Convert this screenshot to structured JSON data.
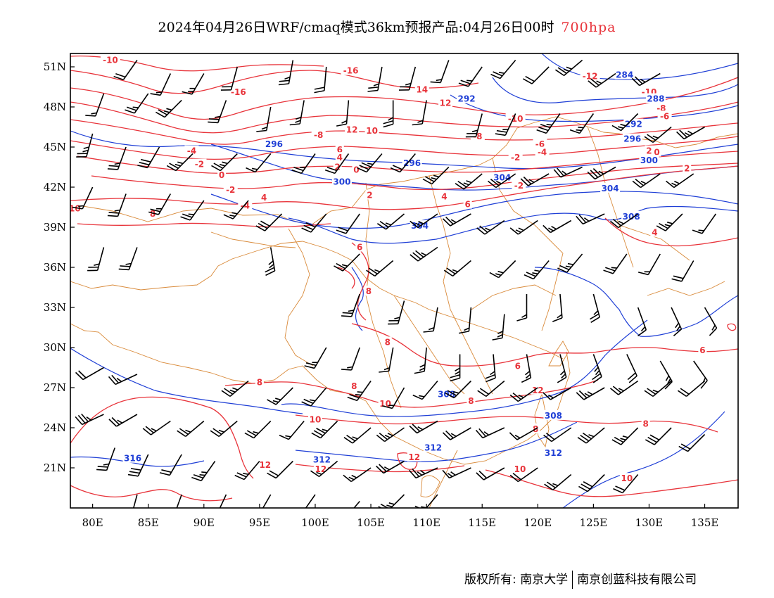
{
  "title": {
    "main": "2024年04月26日WRF/cmaq模式36km预报产品:04月26日00时",
    "level": "700hpa",
    "level_color": "#e8333a"
  },
  "map": {
    "lon_range": [
      78,
      138
    ],
    "lat_range": [
      18,
      52
    ],
    "lon_ticks": [
      {
        "value": 80,
        "label": "80E"
      },
      {
        "value": 85,
        "label": "85E"
      },
      {
        "value": 90,
        "label": "90E"
      },
      {
        "value": 95,
        "label": "95E"
      },
      {
        "value": 100,
        "label": "100E"
      },
      {
        "value": 105,
        "label": "105E"
      },
      {
        "value": 110,
        "label": "110E"
      },
      {
        "value": 115,
        "label": "115E"
      },
      {
        "value": 120,
        "label": "120E"
      },
      {
        "value": 125,
        "label": "125E"
      },
      {
        "value": 130,
        "label": "130E"
      },
      {
        "value": 135,
        "label": "135E"
      }
    ],
    "lat_ticks": [
      {
        "value": 21,
        "label": "21N"
      },
      {
        "value": 24,
        "label": "24N"
      },
      {
        "value": 27,
        "label": "27N"
      },
      {
        "value": 30,
        "label": "30N"
      },
      {
        "value": 33,
        "label": "33N"
      },
      {
        "value": 36,
        "label": "36N"
      },
      {
        "value": 39,
        "label": "39N"
      },
      {
        "value": 42,
        "label": "42N"
      },
      {
        "value": 45,
        "label": "45N"
      },
      {
        "value": 48,
        "label": "48N"
      },
      {
        "value": 51,
        "label": "51N"
      }
    ],
    "colors": {
      "temperature": "#e8333a",
      "height": "#1f3fd6",
      "boundary": "#d98a3a",
      "wind": "#000000"
    },
    "temperature_labels": [
      {
        "text": "-10",
        "lon": 81.6,
        "lat": 51.5
      },
      {
        "text": "-16",
        "lon": 103.2,
        "lat": 50.7
      },
      {
        "text": "-16",
        "lon": 93.1,
        "lat": 49.1
      },
      {
        "text": "14",
        "lon": 109.6,
        "lat": 49.3
      },
      {
        "text": "12",
        "lon": 111.7,
        "lat": 48.3
      },
      {
        "text": "-12",
        "lon": 124.7,
        "lat": 50.3
      },
      {
        "text": "-10",
        "lon": 130.0,
        "lat": 49.1
      },
      {
        "text": "-8",
        "lon": 131.1,
        "lat": 47.9
      },
      {
        "text": "-6",
        "lon": 131.4,
        "lat": 47.3
      },
      {
        "text": "-8",
        "lon": 100.3,
        "lat": 45.9
      },
      {
        "text": "12",
        "lon": 103.3,
        "lat": 46.3
      },
      {
        "text": "10",
        "lon": 105.1,
        "lat": 46.2
      },
      {
        "text": "-8",
        "lon": 114.6,
        "lat": 45.8
      },
      {
        "text": "-10",
        "lon": 118.0,
        "lat": 47.1
      },
      {
        "text": "-6",
        "lon": 120.2,
        "lat": 45.2
      },
      {
        "text": "-4",
        "lon": 120.4,
        "lat": 44.6
      },
      {
        "text": "-2",
        "lon": 118.0,
        "lat": 44.2
      },
      {
        "text": "6",
        "lon": 102.2,
        "lat": 44.8
      },
      {
        "text": "4",
        "lon": 102.2,
        "lat": 44.2
      },
      {
        "text": "2",
        "lon": 102.0,
        "lat": 43.5
      },
      {
        "text": "0",
        "lon": 103.7,
        "lat": 43.3
      },
      {
        "text": "-4",
        "lon": 88.9,
        "lat": 44.7
      },
      {
        "text": "-2",
        "lon": 89.6,
        "lat": 43.7
      },
      {
        "text": "0",
        "lon": 91.6,
        "lat": 42.9
      },
      {
        "text": "-2",
        "lon": 92.4,
        "lat": 41.8
      },
      {
        "text": "4",
        "lon": 95.4,
        "lat": 41.2
      },
      {
        "text": "-4",
        "lon": 93.7,
        "lat": 40.6
      },
      {
        "text": "8",
        "lon": 85.4,
        "lat": 40.0
      },
      {
        "text": "10",
        "lon": 78.4,
        "lat": 40.4
      },
      {
        "text": "2",
        "lon": 104.9,
        "lat": 41.4
      },
      {
        "text": "4",
        "lon": 111.6,
        "lat": 41.3
      },
      {
        "text": "6",
        "lon": 113.7,
        "lat": 40.7
      },
      {
        "text": "-2",
        "lon": 118.3,
        "lat": 42.1
      },
      {
        "text": "2",
        "lon": 130.0,
        "lat": 44.7
      },
      {
        "text": "0",
        "lon": 130.7,
        "lat": 44.6
      },
      {
        "text": "2",
        "lon": 133.4,
        "lat": 43.4
      },
      {
        "text": "4",
        "lon": 130.5,
        "lat": 38.6
      },
      {
        "text": "6",
        "lon": 104.0,
        "lat": 37.5
      },
      {
        "text": "8",
        "lon": 104.8,
        "lat": 34.2
      },
      {
        "text": "8",
        "lon": 106.5,
        "lat": 30.4
      },
      {
        "text": "8",
        "lon": 95.0,
        "lat": 27.4
      },
      {
        "text": "8",
        "lon": 103.5,
        "lat": 27.1
      },
      {
        "text": "6",
        "lon": 118.2,
        "lat": 28.6
      },
      {
        "text": "6",
        "lon": 134.8,
        "lat": 29.8
      },
      {
        "text": "10",
        "lon": 106.3,
        "lat": 25.8
      },
      {
        "text": "10",
        "lon": 100.0,
        "lat": 24.6
      },
      {
        "text": "8",
        "lon": 114.0,
        "lat": 26.0
      },
      {
        "text": "8",
        "lon": 119.8,
        "lat": 23.9
      },
      {
        "text": "8",
        "lon": 129.7,
        "lat": 24.3
      },
      {
        "text": "12",
        "lon": 95.5,
        "lat": 21.2
      },
      {
        "text": "12",
        "lon": 100.5,
        "lat": 20.9
      },
      {
        "text": "12",
        "lon": 108.9,
        "lat": 21.8
      },
      {
        "text": "10",
        "lon": 118.4,
        "lat": 20.9
      },
      {
        "text": "10",
        "lon": 128.0,
        "lat": 20.2
      },
      {
        "text": "12",
        "lon": 120.0,
        "lat": 26.8
      }
    ],
    "height_labels": [
      {
        "text": "284",
        "lon": 127.8,
        "lat": 50.4
      },
      {
        "text": "288",
        "lon": 130.6,
        "lat": 48.6
      },
      {
        "text": "292",
        "lon": 113.6,
        "lat": 48.6
      },
      {
        "text": "292",
        "lon": 128.6,
        "lat": 46.7
      },
      {
        "text": "296",
        "lon": 96.3,
        "lat": 45.2
      },
      {
        "text": "296",
        "lon": 108.7,
        "lat": 43.8
      },
      {
        "text": "296",
        "lon": 128.5,
        "lat": 45.6
      },
      {
        "text": "300",
        "lon": 130.0,
        "lat": 44.0
      },
      {
        "text": "300",
        "lon": 102.4,
        "lat": 42.4
      },
      {
        "text": "304",
        "lon": 116.8,
        "lat": 42.7
      },
      {
        "text": "304",
        "lon": 126.5,
        "lat": 41.9
      },
      {
        "text": "304",
        "lon": 109.4,
        "lat": 39.1
      },
      {
        "text": "308",
        "lon": 128.4,
        "lat": 39.8
      },
      {
        "text": "308",
        "lon": 111.8,
        "lat": 26.5
      },
      {
        "text": "308",
        "lon": 121.4,
        "lat": 24.9
      },
      {
        "text": "312",
        "lon": 110.6,
        "lat": 22.5
      },
      {
        "text": "312",
        "lon": 121.4,
        "lat": 22.1
      },
      {
        "text": "312",
        "lon": 100.6,
        "lat": 21.6
      },
      {
        "text": "316",
        "lon": 83.6,
        "lat": 21.7
      }
    ],
    "wind_barbs": [
      [
        84,
        51.5,
        2.0,
        35
      ],
      [
        87,
        50.5,
        1.7,
        25
      ],
      [
        90,
        50.5,
        1.9,
        30
      ],
      [
        93,
        51,
        2.0,
        15
      ],
      [
        98,
        51.5,
        2.6,
        10
      ],
      [
        101,
        51,
        2.1,
        5
      ],
      [
        106,
        51,
        2.5,
        10
      ],
      [
        109,
        51,
        2.2,
        15
      ],
      [
        112,
        51.5,
        1.6,
        20
      ],
      [
        115,
        51,
        2.6,
        35
      ],
      [
        118,
        51.5,
        2.5,
        40
      ],
      [
        121,
        51,
        2.0,
        45
      ],
      [
        124,
        51.5,
        2.7,
        50
      ],
      [
        127,
        50.5,
        2.5,
        55
      ],
      [
        131,
        50.5,
        2.2,
        60
      ],
      [
        81,
        49,
        1.7,
        20
      ],
      [
        85,
        49,
        2.3,
        35
      ],
      [
        88,
        48.5,
        2.8,
        45
      ],
      [
        92,
        48.5,
        2.5,
        20
      ],
      [
        96,
        48,
        1.6,
        10
      ],
      [
        99,
        48.5,
        1.9,
        10
      ],
      [
        103,
        48.5,
        1.6,
        5
      ],
      [
        107,
        48.5,
        2.6,
        0
      ],
      [
        110,
        48.5,
        1.7,
        10
      ],
      [
        115,
        47.5,
        2.5,
        15
      ],
      [
        118,
        47.5,
        2.4,
        25
      ],
      [
        122,
        47.5,
        3.3,
        35
      ],
      [
        125,
        47.5,
        1.9,
        35
      ],
      [
        129,
        47.5,
        1.9,
        45
      ],
      [
        132,
        46.5,
        2.2,
        50
      ],
      [
        135,
        46.5,
        2.8,
        60
      ],
      [
        80,
        46,
        2.7,
        15
      ],
      [
        83,
        45,
        2.2,
        20
      ],
      [
        86,
        45,
        3.0,
        30
      ],
      [
        89,
        44.5,
        2.9,
        45
      ],
      [
        93,
        44.5,
        2.7,
        45
      ],
      [
        96,
        44.5,
        1.6,
        40
      ],
      [
        100,
        44.5,
        2.4,
        35
      ],
      [
        103,
        44.5,
        2.0,
        35
      ],
      [
        106,
        44.5,
        3.2,
        40
      ],
      [
        109,
        44.5,
        2.1,
        40
      ],
      [
        112,
        43.5,
        2.9,
        45
      ],
      [
        115,
        43,
        2.8,
        50
      ],
      [
        118,
        43,
        2.5,
        55
      ],
      [
        121,
        43,
        2.4,
        60
      ],
      [
        124,
        43.5,
        2.3,
        65
      ],
      [
        127,
        43.5,
        3.3,
        60
      ],
      [
        131,
        43,
        2.4,
        55
      ],
      [
        134,
        43,
        1.8,
        55
      ],
      [
        80,
        42,
        1.6,
        25
      ],
      [
        83,
        41.5,
        2.6,
        20
      ],
      [
        87,
        41.5,
        2.4,
        30
      ],
      [
        90,
        41,
        2.3,
        35
      ],
      [
        94,
        41,
        1.8,
        40
      ],
      [
        97,
        40,
        3.1,
        45
      ],
      [
        101,
        40,
        3.0,
        40
      ],
      [
        104,
        40,
        2.1,
        35
      ],
      [
        108,
        40,
        2.2,
        50
      ],
      [
        111,
        40,
        1.9,
        55
      ],
      [
        114,
        40,
        2.6,
        60
      ],
      [
        117,
        39.5,
        2.6,
        55
      ],
      [
        120,
        39.5,
        1.9,
        55
      ],
      [
        123,
        39.5,
        1.8,
        60
      ],
      [
        126,
        40,
        2.5,
        65
      ],
      [
        129,
        40,
        2.2,
        55
      ],
      [
        133,
        40,
        2.7,
        45
      ],
      [
        136,
        40,
        1.6,
        35
      ],
      [
        81,
        37.5,
        2.5,
        15
      ],
      [
        84,
        37.5,
        2.3,
        20
      ],
      [
        96,
        37.5,
        2.8,
        350
      ],
      [
        104,
        37,
        2.4,
        45
      ],
      [
        107,
        36.5,
        2.5,
        50
      ],
      [
        111,
        37.5,
        3.2,
        55
      ],
      [
        114,
        36.5,
        2.3,
        50
      ],
      [
        118,
        36.5,
        1.8,
        45
      ],
      [
        121,
        36.5,
        2.8,
        40
      ],
      [
        124,
        37,
        2.9,
        40
      ],
      [
        128,
        37,
        2.2,
        35
      ],
      [
        131,
        37,
        1.7,
        30
      ],
      [
        134,
        36.5,
        2.1,
        30
      ],
      [
        119,
        34,
        1.6,
        0
      ],
      [
        122,
        34,
        1.7,
        355
      ],
      [
        125,
        34,
        2.3,
        345
      ],
      [
        129,
        33,
        1.5,
        340
      ],
      [
        132,
        33,
        1.8,
        335
      ],
      [
        135,
        33,
        1.6,
        330
      ],
      [
        104,
        34,
        2.4,
        20
      ],
      [
        108,
        33.5,
        2.5,
        15
      ],
      [
        111,
        33,
        1.7,
        10
      ],
      [
        114,
        33,
        1.5,
        5
      ],
      [
        117,
        32.5,
        1.9,
        5
      ],
      [
        101,
        30,
        2.4,
        30
      ],
      [
        104,
        30,
        1.6,
        20
      ],
      [
        107,
        30,
        1.6,
        10
      ],
      [
        110,
        30,
        1.9,
        5
      ],
      [
        113,
        29.5,
        2.9,
        0
      ],
      [
        116,
        29.5,
        2.2,
        355
      ],
      [
        119,
        29.5,
        1.8,
        350
      ],
      [
        122,
        29.5,
        1.8,
        345
      ],
      [
        125,
        29.5,
        2.7,
        340
      ],
      [
        128,
        29.5,
        2.0,
        335
      ],
      [
        131,
        29,
        1.8,
        330
      ],
      [
        134,
        29,
        1.7,
        325
      ],
      [
        81,
        28.5,
        2.0,
        60
      ],
      [
        84,
        28,
        2.2,
        65
      ],
      [
        94,
        27.5,
        2.7,
        50
      ],
      [
        98,
        27,
        1.8,
        45
      ],
      [
        101,
        27,
        2.4,
        40
      ],
      [
        105,
        27.5,
        2.7,
        35
      ],
      [
        108,
        27,
        1.7,
        30
      ],
      [
        111,
        27.5,
        1.7,
        40
      ],
      [
        114,
        27.5,
        2.5,
        45
      ],
      [
        117,
        27.5,
        2.1,
        50
      ],
      [
        120,
        27,
        2.3,
        55
      ],
      [
        123,
        27,
        1.6,
        60
      ],
      [
        126,
        27,
        2.7,
        60
      ],
      [
        129,
        27.5,
        2.6,
        55
      ],
      [
        132,
        27.5,
        2.3,
        50
      ],
      [
        135,
        27.5,
        2.0,
        50
      ],
      [
        81,
        25,
        3.3,
        65
      ],
      [
        84,
        25,
        2.4,
        60
      ],
      [
        87,
        24.5,
        2.4,
        55
      ],
      [
        90,
        24.5,
        2.3,
        50
      ],
      [
        93,
        24.5,
        2.6,
        50
      ],
      [
        96,
        24.5,
        2.4,
        45
      ],
      [
        99,
        24.5,
        1.6,
        40
      ],
      [
        102,
        24.5,
        3.3,
        45
      ],
      [
        105,
        24,
        2.5,
        50
      ],
      [
        108,
        24,
        2.8,
        55
      ],
      [
        111,
        24.5,
        2.3,
        60
      ],
      [
        114,
        24,
        2.3,
        60
      ],
      [
        117,
        24,
        2.3,
        65
      ],
      [
        120,
        24,
        1.7,
        60
      ],
      [
        123,
        24,
        2.0,
        55
      ],
      [
        126,
        24,
        3.3,
        50
      ],
      [
        129,
        24,
        2.7,
        45
      ],
      [
        132,
        24,
        3.0,
        45
      ],
      [
        135,
        23.5,
        2.1,
        45
      ],
      [
        82,
        22.5,
        2.4,
        20
      ],
      [
        85,
        22,
        3.0,
        25
      ],
      [
        88,
        22,
        2.0,
        30
      ],
      [
        91,
        21.5,
        2.8,
        35
      ],
      [
        95,
        21.5,
        2.5,
        40
      ],
      [
        98,
        21.5,
        2.1,
        45
      ],
      [
        102,
        21.5,
        1.7,
        50
      ],
      [
        105,
        21,
        1.8,
        55
      ],
      [
        108,
        21.5,
        2.4,
        60
      ],
      [
        111,
        21,
        2.7,
        65
      ],
      [
        114,
        21,
        1.9,
        65
      ],
      [
        117,
        21,
        2.1,
        60
      ],
      [
        120,
        21,
        2.0,
        55
      ],
      [
        123,
        20.5,
        2.3,
        50
      ],
      [
        126,
        20.5,
        3.1,
        45
      ],
      [
        129,
        20.5,
        2.0,
        40
      ],
      [
        84,
        19,
        2.9,
        15
      ],
      [
        88,
        19,
        1.7,
        20
      ],
      [
        92,
        19,
        1.8,
        25
      ],
      [
        96,
        19,
        2.6,
        30
      ],
      [
        100,
        19,
        2.6,
        35
      ],
      [
        104,
        18.5,
        2.1,
        40
      ],
      [
        108,
        19,
        2.8,
        45
      ],
      [
        111,
        19,
        2.3,
        40
      ]
    ]
  },
  "footer": {
    "left": "版权所有: 南京大学",
    "right": "南京创蓝科技有限公司"
  }
}
